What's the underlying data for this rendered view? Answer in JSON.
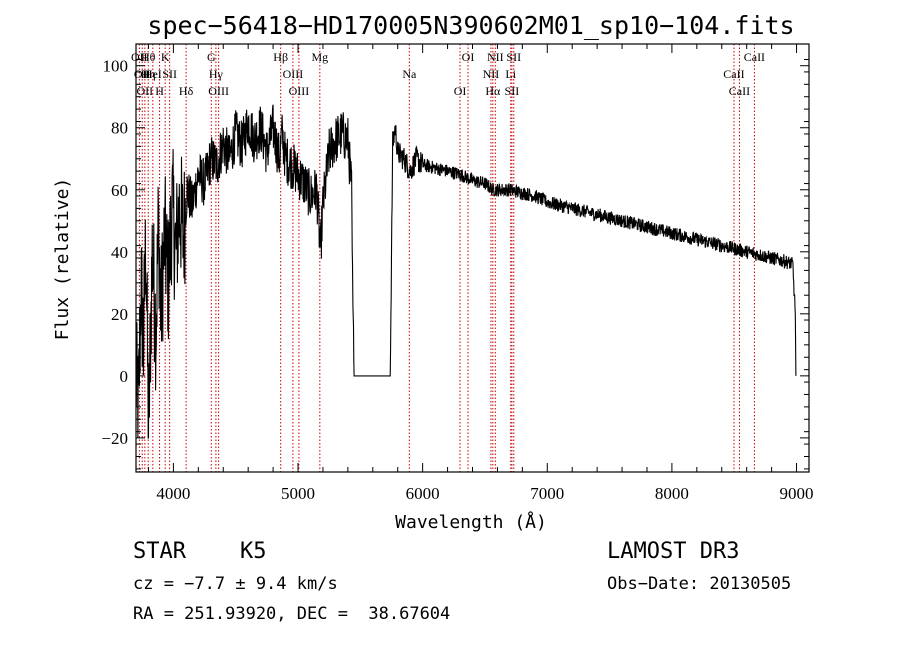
{
  "chart_data": {
    "type": "line",
    "title": "spec−56418−HD170005N390602M01_sp10−104.fits",
    "xlabel": "Wavelength (Å)",
    "ylabel": "Flux (relative)",
    "xlim": [
      3700,
      9100
    ],
    "ylim": [
      -31,
      107
    ],
    "xticks": [
      4000,
      5000,
      6000,
      7000,
      8000,
      9000
    ],
    "xtick_labels": [
      "4000",
      "5000",
      "6000",
      "7000",
      "8000",
      "9000"
    ],
    "yticks": [
      -20,
      0,
      20,
      40,
      60,
      80,
      100
    ],
    "ytick_labels": [
      "−20",
      "0",
      "20",
      "40",
      "60",
      "80",
      "100"
    ],
    "series": [
      {
        "name": "spectrum",
        "x": [
          3700,
          3720,
          3740,
          3760,
          3780,
          3800,
          3830,
          3860,
          3880,
          3900,
          3930,
          3960,
          3990,
          4020,
          4050,
          4080,
          4110,
          4150,
          4200,
          4250,
          4300,
          4350,
          4400,
          4450,
          4500,
          4550,
          4600,
          4650,
          4700,
          4750,
          4800,
          4850,
          4870,
          4900,
          4950,
          5000,
          5050,
          5100,
          5150,
          5180,
          5200,
          5250,
          5300,
          5350,
          5400,
          5430,
          5440,
          5450,
          5600,
          5740,
          5745,
          5760,
          5780,
          5800,
          5850,
          5900,
          5950,
          6000,
          6100,
          6200,
          6300,
          6400,
          6500,
          6563,
          6600,
          6700,
          6800,
          6900,
          7000,
          7100,
          7200,
          7300,
          7400,
          7500,
          7600,
          7700,
          7800,
          7900,
          8000,
          8100,
          8200,
          8300,
          8400,
          8500,
          8600,
          8700,
          8800,
          8900,
          8970,
          8990,
          8995
        ],
        "y": [
          0,
          -12,
          30,
          10,
          45,
          -20,
          40,
          15,
          50,
          20,
          45,
          30,
          55,
          40,
          55,
          45,
          60,
          55,
          65,
          62,
          70,
          68,
          75,
          70,
          78,
          74,
          82,
          76,
          80,
          72,
          80,
          70,
          78,
          70,
          68,
          65,
          62,
          58,
          60,
          40,
          55,
          72,
          76,
          78,
          76,
          60,
          20,
          0,
          0,
          0,
          20,
          75,
          80,
          72,
          70,
          66,
          70,
          68,
          67,
          66,
          65,
          63,
          62,
          60,
          60,
          60,
          59,
          58,
          56,
          55,
          54,
          53,
          52,
          51,
          50,
          49,
          48,
          47,
          46,
          45,
          44,
          43,
          42,
          41,
          40,
          39,
          38,
          37,
          36,
          20,
          0
        ]
      }
    ],
    "lines": [
      {
        "x": 3727,
        "labels": [
          "OII"
        ]
      },
      {
        "x": 3750,
        "labels": [
          "OII"
        ]
      },
      {
        "x": 3771,
        "labels": [
          "OII"
        ]
      },
      {
        "x": 3798,
        "labels": [
          "Hθ",
          "Hη"
        ]
      },
      {
        "x": 3835,
        "labels": [
          "HeI"
        ]
      },
      {
        "x": 3889,
        "labels": [
          "H"
        ]
      },
      {
        "x": 3934,
        "labels": [
          "K"
        ]
      },
      {
        "x": 3970,
        "labels": [
          "SII"
        ]
      },
      {
        "x": 4102,
        "labels": [
          "Hδ"
        ]
      },
      {
        "x": 4304,
        "labels": [
          "G"
        ]
      },
      {
        "x": 4341,
        "labels": [
          "Hγ"
        ]
      },
      {
        "x": 4363,
        "labels": [
          "OIII"
        ]
      },
      {
        "x": 4861,
        "labels": [
          "Hβ"
        ]
      },
      {
        "x": 4959,
        "labels": [
          "OIII"
        ]
      },
      {
        "x": 5007,
        "labels": [
          "OIII"
        ]
      },
      {
        "x": 5175,
        "labels": [
          "Mg"
        ]
      },
      {
        "x": 5893,
        "labels": [
          "Na"
        ]
      },
      {
        "x": 6300,
        "labels": [
          "OI"
        ]
      },
      {
        "x": 6364,
        "labels": [
          "OI"
        ]
      },
      {
        "x": 6548,
        "labels": [
          "NII"
        ]
      },
      {
        "x": 6563,
        "labels": [
          "Hα"
        ]
      },
      {
        "x": 6583,
        "labels": [
          "NII"
        ]
      },
      {
        "x": 6707,
        "labels": [
          "Li"
        ]
      },
      {
        "x": 6716,
        "labels": [
          "SII"
        ]
      },
      {
        "x": 6731,
        "labels": [
          "SII"
        ]
      },
      {
        "x": 8498,
        "labels": [
          "CaII"
        ]
      },
      {
        "x": 8542,
        "labels": [
          "CaII"
        ]
      },
      {
        "x": 8662,
        "labels": [
          "CaII"
        ]
      }
    ],
    "line_label_texts": [
      "OII",
      "Hθ",
      "Hη",
      "HeI",
      "H",
      "K",
      "SII",
      "Hδ",
      "G",
      "Hγ",
      "OIII",
      "Hβ",
      "Mg",
      "Na",
      "OI",
      "NII",
      "Hα",
      "Li",
      "CaII"
    ],
    "grid": false,
    "legend": "none"
  },
  "info": {
    "class": "STAR",
    "subclass": "K5",
    "cz": "cz = −7.7 ± 9.4 km/s",
    "radec": "RA = 251.93920, DEC =  38.67604",
    "survey": "LAMOST DR3",
    "obsdate": "Obs−Date: 20130505"
  },
  "colors": {
    "spectrum": "#000000",
    "line_marker": "#cc0000",
    "axis": "#000000"
  }
}
